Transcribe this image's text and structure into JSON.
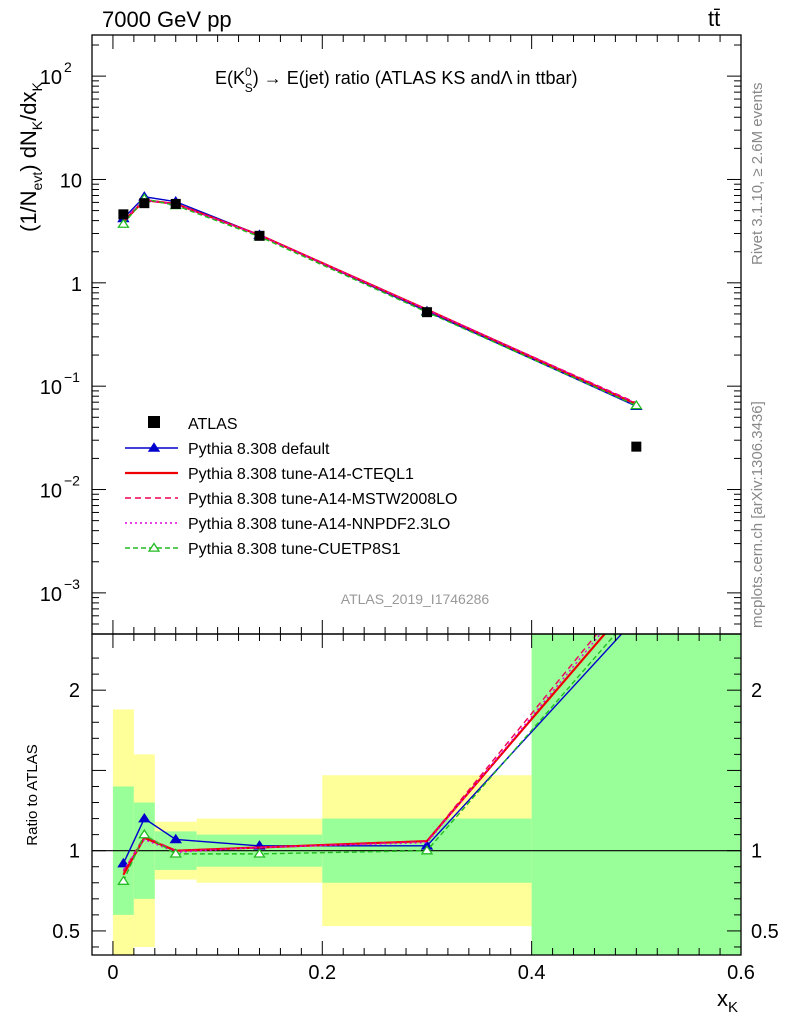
{
  "header": {
    "energy": "7000 GeV pp",
    "process": "tt̄"
  },
  "title": {
    "prefix": "E(K",
    "sup": "0",
    "sub": "S",
    "suffix": ") → E(jet) ratio (ATLAS KS andΛ in ttbar)"
  },
  "side_labels": {
    "rivet": "Rivet 3.1.10, ≥ 2.6M events",
    "mcplots": "mcplots.cern.ch [arXiv:1306.3436]"
  },
  "watermark": "ATLAS_2019_I1746286",
  "axis_labels": {
    "ylabel_top": "(1/N",
    "ylabel_top_sub": "evt",
    "ylabel_top_mid": ") dN",
    "ylabel_top_sub2": "K",
    "ylabel_top_end": "/dx",
    "ylabel_top_sub3": "K",
    "ylabel_ratio": "Ratio to ATLAS",
    "xlabel": "x",
    "xlabel_sub": "K"
  },
  "colors": {
    "atlas": "#000000",
    "default": "#0000cc",
    "a14_cteql1": "#ee0000",
    "a14_mstw": "#ee0055",
    "a14_nnpdf": "#dd00dd",
    "cuetp8s1": "#22bb22",
    "band_yellow": "#ffff99",
    "band_green": "#99ff99"
  },
  "chart_data": {
    "type": "line",
    "ylog": true,
    "xlim": [
      -0.02,
      0.6
    ],
    "ylim": [
      0.0004,
      250
    ],
    "ratio_ylim": [
      0.35,
      2.35
    ],
    "x_ticks": [
      "0",
      "0.2",
      "0.4",
      "0.6"
    ],
    "y_ticks": [
      {
        "label": "10",
        "sup": "−3",
        "value": 0.001
      },
      {
        "label": "10",
        "sup": "−2",
        "value": 0.01
      },
      {
        "label": "10",
        "sup": "−1",
        "value": 0.1
      },
      {
        "label": "1",
        "sup": "",
        "value": 1
      },
      {
        "label": "10",
        "sup": "",
        "value": 10
      },
      {
        "label": "10",
        "sup": "2",
        "value": 100
      }
    ],
    "ratio_ticks": [
      {
        "label": "0.5",
        "value": 0.5
      },
      {
        "label": "1",
        "value": 1
      },
      {
        "label": "2",
        "value": 2
      }
    ],
    "bin_edges": [
      0,
      0.02,
      0.04,
      0.08,
      0.2,
      0.4,
      0.6
    ],
    "data": {
      "name": "ATLAS",
      "x": [
        0.01,
        0.03,
        0.06,
        0.14,
        0.3,
        0.5
      ],
      "y": [
        4.6,
        5.9,
        5.8,
        2.85,
        0.52,
        0.026
      ]
    },
    "bands": {
      "stat_rel": [
        0.4,
        0.3,
        0.12,
        0.1,
        0.2,
        1.5
      ],
      "total_rel": [
        0.88,
        0.6,
        0.18,
        0.2,
        0.47,
        1.5
      ]
    },
    "series": [
      {
        "name": "Pythia 8.308 default",
        "key": "default",
        "marker": "triangle-filled",
        "dash": "",
        "y": [
          4.2,
          6.8,
          6.1,
          2.9,
          0.53,
          0.064
        ],
        "ratio": [
          0.92,
          1.2,
          1.07,
          1.03,
          1.03,
          2.45
        ]
      },
      {
        "name": "Pythia 8.308 tune-A14-CTEQL1",
        "key": "a14_cteql1",
        "marker": "",
        "dash": "",
        "y": [
          3.9,
          6.3,
          5.8,
          2.9,
          0.55,
          0.067
        ],
        "ratio": [
          0.85,
          1.08,
          1.0,
          1.02,
          1.06,
          2.58
        ]
      },
      {
        "name": "Pythia 8.308 tune-A14-MSTW2008LO",
        "key": "a14_mstw",
        "marker": "",
        "dash": "6,4",
        "y": [
          4.0,
          6.4,
          5.8,
          2.9,
          0.55,
          0.069
        ],
        "ratio": [
          0.87,
          1.09,
          1.0,
          1.02,
          1.06,
          2.65
        ]
      },
      {
        "name": "Pythia 8.308 tune-A14-NNPDF2.3LO",
        "key": "a14_nnpdf",
        "marker": "",
        "dash": "2,3",
        "y": [
          4.05,
          6.3,
          5.75,
          2.9,
          0.55,
          0.068
        ],
        "ratio": [
          0.88,
          1.07,
          0.99,
          1.02,
          1.05,
          2.62
        ]
      },
      {
        "name": "Pythia 8.308 tune-CUETP8S1",
        "key": "cuetp8s1",
        "marker": "triangle-open",
        "dash": "5,3",
        "y": [
          3.7,
          6.5,
          5.6,
          2.8,
          0.52,
          0.065
        ],
        "ratio": [
          0.81,
          1.1,
          0.98,
          0.98,
          1.0,
          2.5
        ]
      }
    ],
    "legend_position": "center-left"
  }
}
